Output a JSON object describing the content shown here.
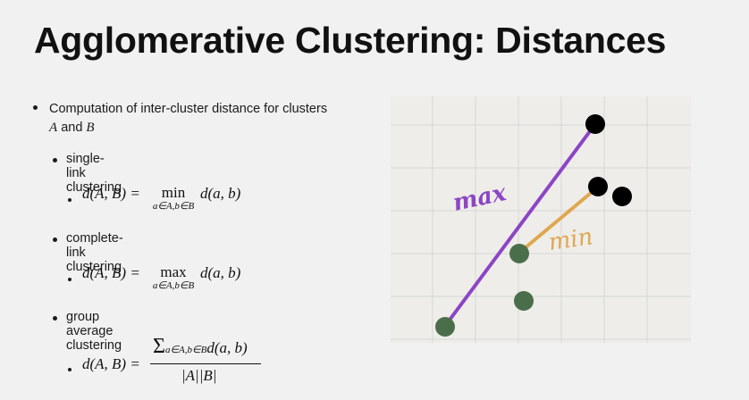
{
  "slide": {
    "title": "Agglomerative Clustering: Distances"
  },
  "bullets": {
    "main_text": "Computation of inter-cluster distance for clusters",
    "main_text_vars": "A",
    "main_text_and": " and ",
    "main_text_var2": "B",
    "single_link": "single-link clustering",
    "complete_link": "complete-link clustering",
    "group_average": "group average clustering"
  },
  "formulas": {
    "lhs": "d(A, B) =",
    "min_op": "min",
    "max_op": "max",
    "op_subscript": "a∈A,b∈B",
    "rhs": "d(a, b)",
    "sigma": "Σ",
    "sum_subscript": "a∈A,b∈B",
    "sum_term": "d(a, b)",
    "denominator": "|A||B|"
  },
  "diagram": {
    "max_label": "max",
    "min_label": "min",
    "colors": {
      "background": "#eeede9",
      "grid": "#d6d6d6",
      "max_line": "#8c45c4",
      "min_line": "#e0a751",
      "black_point": "#000000",
      "green_point": "#4a6e4a"
    }
  }
}
